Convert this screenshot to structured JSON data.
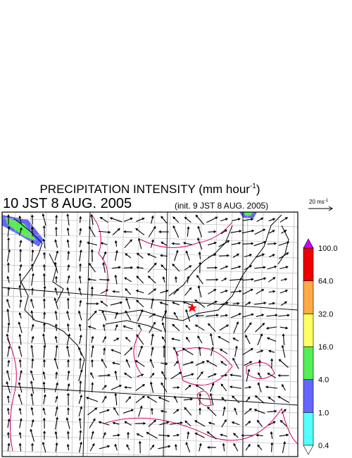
{
  "header": {
    "title": {
      "text": "PRECIPITATION INTENSITY (mm hour",
      "superscript": "-1",
      "close": ")"
    },
    "valid_time": "10 JST 8 AUG. 2005",
    "init_time": "(init. 9 JST 8 AUG. 2005)"
  },
  "wind_scale": {
    "text": "20 ms",
    "superscript": "-1"
  },
  "legend": {
    "labels": [
      "0.4",
      "1.0",
      "4.0",
      "16.0",
      "32.0",
      "64.0",
      "100.0"
    ],
    "colors": [
      "#55ffff",
      "#6666ff",
      "#55ee55",
      "#ffff66",
      "#ffaa44",
      "#ee0000"
    ],
    "over_color": "#cc00ff",
    "under_color": "#ffffff"
  }
}
